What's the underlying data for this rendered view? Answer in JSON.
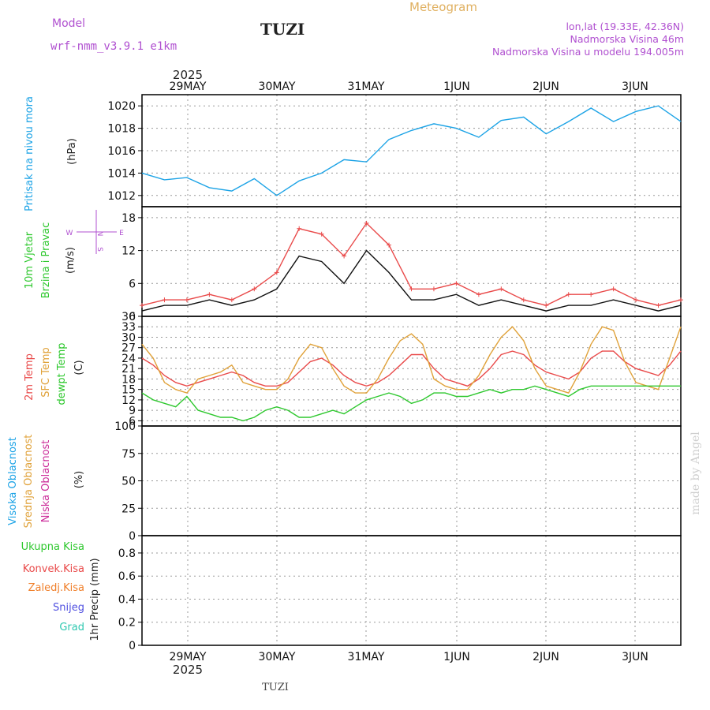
{
  "header": {
    "model_label": "Model",
    "model_name": "wrf-nmm_v3.9.1  e1km",
    "station": "TUZI",
    "product": "Meteogram",
    "lonlat": "lon,lat (19.33E, 42.36N)",
    "elevation": "Nadmorska Visina 46m",
    "model_elevation": "Nadmorska Visina u modelu 194.005m",
    "year": "2025",
    "footer_station": "TUZI",
    "credit": "made by Angel"
  },
  "colors": {
    "pressure": "#1ca3e6",
    "temp2m": "#e94a4a",
    "sfc": "#e0a23a",
    "dew": "#2ec82e",
    "wind_obs": "#111111",
    "wind_gust": "#e94a4a",
    "cloud_high": "#1ca3e6",
    "cloud_mid": "#e0a23a",
    "cloud_low": "#cc2d9a",
    "header_purple": "#b050d0",
    "header_orange": "#e0b060"
  },
  "chart_data": [
    {
      "type": "line",
      "panel": "pressure",
      "ylabel_main": "Pritisak na nivou mora",
      "ylabel_unit": "(hPa)",
      "ylim": [
        1011,
        1021
      ],
      "yticks": [
        1012,
        1014,
        1016,
        1018,
        1020
      ],
      "x_hours": [
        0,
        6,
        12,
        18,
        24,
        30,
        36,
        42,
        48,
        54,
        60,
        66,
        72,
        78,
        84,
        90,
        96,
        102,
        108,
        114,
        120,
        126,
        132,
        138,
        144
      ],
      "series": [
        {
          "values": [
            1014.0,
            1013.4,
            1013.6,
            1012.7,
            1012.4,
            1013.5,
            1012.0,
            1013.3,
            1014.0,
            1015.2,
            1015.0,
            1017.0,
            1017.8,
            1018.4,
            1018.0,
            1017.2,
            1018.7,
            1019.0,
            1017.5,
            1018.6,
            1019.8,
            1018.6,
            1019.5,
            1020.0,
            1018.6
          ]
        }
      ],
      "grid": true
    },
    {
      "type": "line",
      "panel": "wind",
      "ylabel_main": "10m Vjetar",
      "ylabel_sub": "Brzina i Pravac",
      "ylabel_unit": "(m/s)",
      "ylim": [
        0,
        20
      ],
      "yticks": [
        0,
        6,
        12,
        18
      ],
      "compass": {
        "n": "N",
        "w": "W",
        "e": "E",
        "s": "S"
      },
      "x_hours": [
        0,
        6,
        12,
        18,
        24,
        30,
        36,
        42,
        48,
        54,
        60,
        66,
        72,
        78,
        84,
        90,
        96,
        102,
        108,
        114,
        120,
        126,
        132,
        138,
        144
      ],
      "series": [
        {
          "values": [
            1,
            2,
            2,
            3,
            2,
            3,
            5,
            11,
            10,
            6,
            12,
            8,
            3,
            3,
            4,
            2,
            3,
            2,
            1,
            2,
            2,
            3,
            2,
            1,
            2
          ]
        },
        {
          "values": [
            2,
            3,
            3,
            4,
            3,
            5,
            8,
            16,
            15,
            11,
            17,
            13,
            5,
            5,
            6,
            4,
            5,
            3,
            2,
            4,
            4,
            5,
            3,
            2,
            3
          ]
        }
      ],
      "grid": true
    },
    {
      "type": "line",
      "panel": "temperature",
      "series_labels": [
        "2m Temp",
        "SFC Temp",
        "dewpt Temp"
      ],
      "ylabel_unit": "(C)",
      "ylim": [
        4.5,
        36
      ],
      "yticks": [
        6,
        9,
        12,
        15,
        18,
        21,
        24,
        27,
        30,
        33,
        36
      ],
      "x_hours": [
        0,
        3,
        6,
        9,
        12,
        15,
        18,
        21,
        24,
        27,
        30,
        33,
        36,
        39,
        42,
        45,
        48,
        51,
        54,
        57,
        60,
        63,
        66,
        69,
        72,
        75,
        78,
        81,
        84,
        87,
        90,
        93,
        96,
        99,
        102,
        105,
        108,
        111,
        114,
        117,
        120,
        123,
        126,
        129,
        132,
        135,
        138,
        141,
        144
      ],
      "series": [
        {
          "values": [
            24,
            22,
            19,
            17,
            16,
            17,
            18,
            19,
            20,
            19,
            17,
            16,
            16,
            17,
            20,
            23,
            24,
            22,
            19,
            17,
            16,
            17,
            19,
            22,
            25,
            25,
            21,
            18,
            17,
            16,
            18,
            21,
            25,
            26,
            25,
            22,
            20,
            19,
            18,
            20,
            24,
            26,
            26,
            23,
            21,
            20,
            19,
            22,
            26
          ]
        },
        {
          "values": [
            28,
            24,
            17,
            15,
            14,
            18,
            19,
            20,
            22,
            17,
            16,
            15,
            15,
            18,
            24,
            28,
            27,
            21,
            16,
            14,
            14,
            18,
            24,
            29,
            31,
            28,
            18,
            16,
            15,
            15,
            19,
            25,
            30,
            33,
            29,
            21,
            16,
            15,
            14,
            20,
            28,
            33,
            32,
            23,
            17,
            16,
            15,
            24,
            33
          ]
        },
        {
          "values": [
            14,
            12,
            11,
            10,
            13,
            9,
            8,
            7,
            7,
            6,
            7,
            9,
            10,
            9,
            7,
            7,
            8,
            9,
            8,
            10,
            12,
            13,
            14,
            13,
            11,
            12,
            14,
            14,
            13,
            13,
            14,
            15,
            14,
            15,
            15,
            16,
            15,
            14,
            13,
            15,
            16,
            16,
            16,
            16,
            16,
            16,
            16,
            16,
            16
          ]
        }
      ],
      "grid": true
    },
    {
      "type": "bar",
      "panel": "cloud",
      "series_labels": [
        "Visoka Oblacnost",
        "Srednja Oblacnost",
        "Niska Oblacnost"
      ],
      "ylabel_unit": "(%)",
      "ylim": [
        0,
        100
      ],
      "yticks": [
        0,
        25,
        50,
        75,
        100
      ],
      "grid": true
    },
    {
      "type": "bar",
      "panel": "precip",
      "series_labels": [
        "Ukupna Kisa",
        "Konvek.Kisa",
        "Zaledj.Kisa",
        "Snijeg",
        "Grad"
      ],
      "ylabel_unit": "1hr Precip (mm)",
      "ylim": [
        0,
        0.95
      ],
      "yticks": [
        0,
        0.2,
        0.4,
        0.6,
        0.8
      ],
      "grid": true
    }
  ],
  "x_axis": {
    "labels": [
      "29MAY",
      "30MAY",
      "31MAY",
      "1JUN",
      "2JUN",
      "3JUN"
    ]
  }
}
